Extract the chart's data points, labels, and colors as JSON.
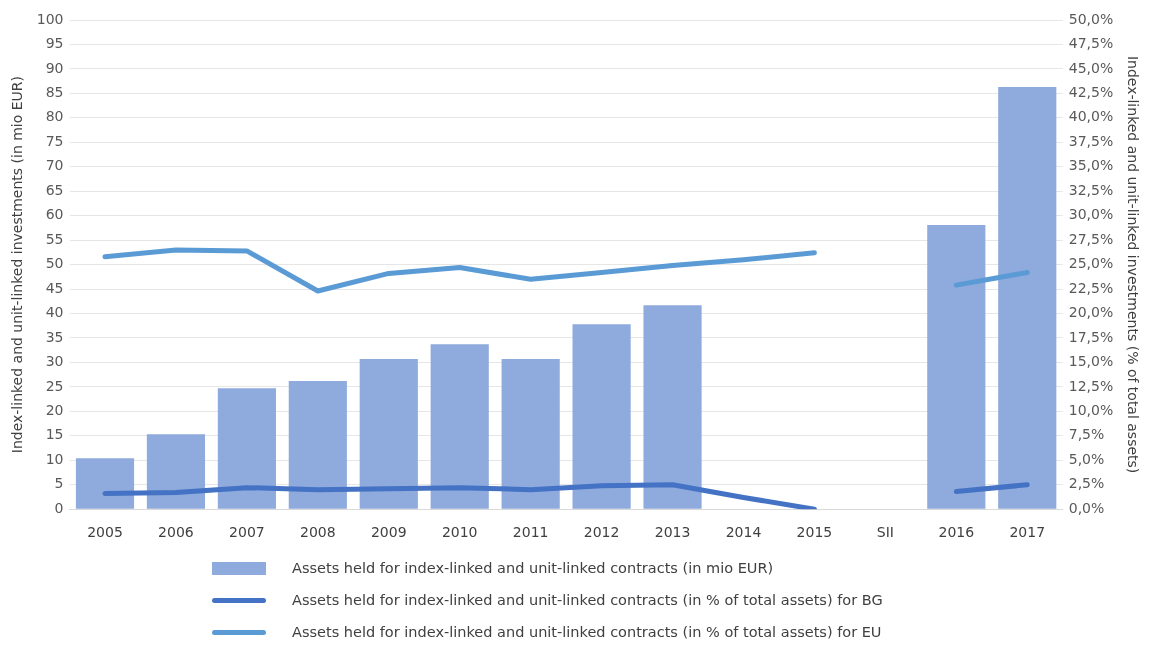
{
  "chart_data": {
    "type": "bar",
    "ylabel": "Index-linked and unit-linked investments (in mio EUR)",
    "y2label": "Index-linked and unit-linked investments (% of total assets)",
    "categories": [
      "2005",
      "2006",
      "2007",
      "2008",
      "2009",
      "2010",
      "2011",
      "2012",
      "2013",
      "2014",
      "2015",
      "SII",
      "2016",
      "2017"
    ],
    "series": [
      {
        "name": "Assets held for index-linked and unit-linked contracts (in mio EUR)",
        "color": "#8faadc",
        "values": [
          10.4,
          15.3,
          24.7,
          26.2,
          30.7,
          33.7,
          30.7,
          37.8,
          41.7,
          null,
          null,
          null,
          58.1,
          86.3
        ]
      },
      {
        "name": "Assets held for index-linked and unit-linked contracts (in % of total assets) for BG",
        "type": "line",
        "axis": "y2",
        "color": "#4472c4",
        "values": [
          1.6,
          1.7,
          2.2,
          2.0,
          2.1,
          2.2,
          2.0,
          2.4,
          2.5,
          1.2,
          0,
          null,
          1.8,
          2.5
        ]
      },
      {
        "name": "Assets held for index-linked and unit-linked contracts (in % of total assets) for EU",
        "type": "line",
        "axis": "y2",
        "color": "#5b9bd5",
        "values": [
          25.8,
          26.5,
          26.4,
          22.3,
          24.1,
          24.7,
          23.5,
          24.2,
          24.9,
          25.5,
          26.2,
          null,
          22.9,
          24.2
        ]
      }
    ],
    "ylim": [
      0,
      100
    ],
    "yticks": [
      0,
      5,
      10,
      15,
      20,
      25,
      30,
      35,
      40,
      45,
      50,
      55,
      60,
      65,
      70,
      75,
      80,
      85,
      90,
      95,
      100
    ],
    "y2lim": [
      0,
      50
    ],
    "y2ticks": [
      {
        "value": 0,
        "label": "0,0%"
      },
      {
        "value": 2.5,
        "label": "2,5%"
      },
      {
        "value": 5,
        "label": "5,0%"
      },
      {
        "value": 7.5,
        "label": "7,5%"
      },
      {
        "value": 10,
        "label": "10,0%"
      },
      {
        "value": 12.5,
        "label": "12,5%"
      },
      {
        "value": 15,
        "label": "15,0%"
      },
      {
        "value": 17.5,
        "label": "17,5%"
      },
      {
        "value": 20,
        "label": "20,0%"
      },
      {
        "value": 22.5,
        "label": "22,5%"
      },
      {
        "value": 25,
        "label": "25,0%"
      },
      {
        "value": 27.5,
        "label": "27,5%"
      },
      {
        "value": 30,
        "label": "30,0%"
      },
      {
        "value": 32.5,
        "label": "32,5%"
      },
      {
        "value": 35,
        "label": "35,0%"
      },
      {
        "value": 37.5,
        "label": "37,5%"
      },
      {
        "value": 40,
        "label": "40,0%"
      },
      {
        "value": 42.5,
        "label": "42,5%"
      },
      {
        "value": 45,
        "label": "45,0%"
      },
      {
        "value": 47.5,
        "label": "47,5%"
      },
      {
        "value": 50,
        "label": "50,0%"
      }
    ],
    "grid": "y",
    "legend": "bottom",
    "marker": "none",
    "line_style": "solid"
  }
}
